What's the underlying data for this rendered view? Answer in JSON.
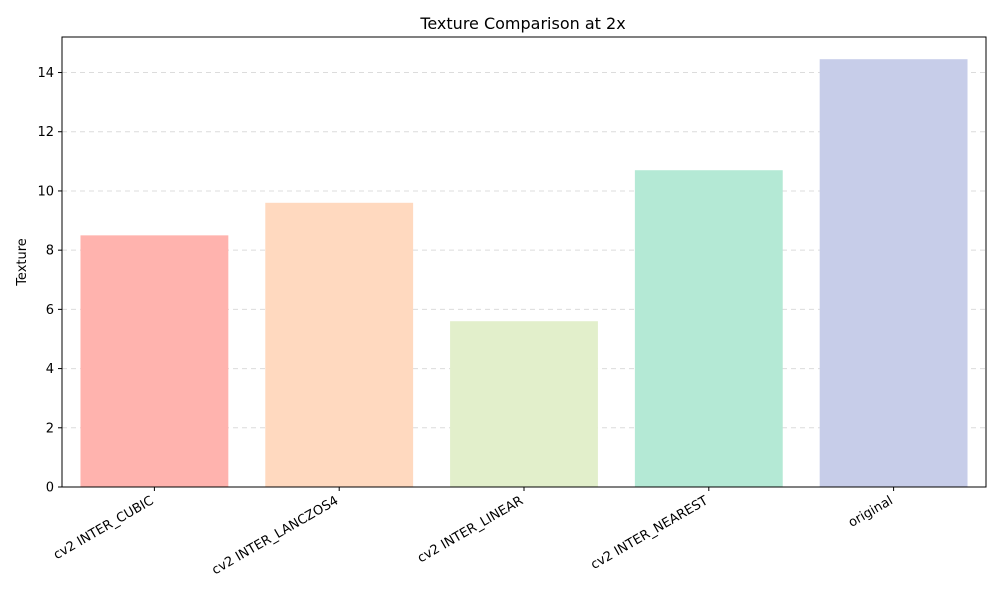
{
  "chart_data": {
    "type": "bar",
    "title": "Texture Comparison at 2x",
    "xlabel": "",
    "ylabel": "Texture",
    "categories": [
      "cv2 INTER_CUBIC",
      "cv2 INTER_LANCZOS4",
      "cv2 INTER_LINEAR",
      "cv2 INTER_NEAREST",
      "original"
    ],
    "values": [
      8.5,
      9.6,
      5.6,
      10.7,
      14.45
    ],
    "colors": [
      "#ffb3ae",
      "#ffd9bf",
      "#e2efcb",
      "#b4e9d5",
      "#c7cde9"
    ],
    "ylim": [
      0,
      15.2
    ],
    "yticks": [
      0,
      2,
      4,
      6,
      8,
      10,
      12,
      14
    ],
    "ytick_labels": [
      "0",
      "2",
      "4",
      "6",
      "8",
      "10",
      "12",
      "14"
    ],
    "grid": "y-dashed",
    "xtick_rotation_deg": 30
  }
}
